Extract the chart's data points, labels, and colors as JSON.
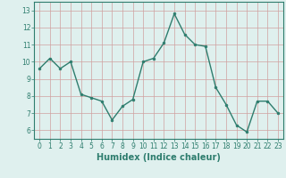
{
  "x": [
    0,
    1,
    2,
    3,
    4,
    5,
    6,
    7,
    8,
    9,
    10,
    11,
    12,
    13,
    14,
    15,
    16,
    17,
    18,
    19,
    20,
    21,
    22,
    23
  ],
  "y": [
    9.6,
    10.2,
    9.6,
    10.0,
    8.1,
    7.9,
    7.7,
    6.6,
    7.4,
    7.8,
    10.0,
    10.2,
    11.1,
    12.8,
    11.6,
    11.0,
    10.9,
    8.5,
    7.5,
    6.3,
    5.9,
    7.7,
    7.7,
    7.0
  ],
  "line_color": "#2e7d6e",
  "marker": "o",
  "marker_size": 2,
  "line_width": 1.0,
  "xlabel": "Humidex (Indice chaleur)",
  "xlabel_fontsize": 7,
  "ylim": [
    5.5,
    13.5
  ],
  "xlim": [
    -0.5,
    23.5
  ],
  "yticks": [
    6,
    7,
    8,
    9,
    10,
    11,
    12,
    13
  ],
  "xticks": [
    0,
    1,
    2,
    3,
    4,
    5,
    6,
    7,
    8,
    9,
    10,
    11,
    12,
    13,
    14,
    15,
    16,
    17,
    18,
    19,
    20,
    21,
    22,
    23
  ],
  "grid_color": "#d0a0a0",
  "background_color": "#dff0ee",
  "tick_fontsize": 5.5
}
